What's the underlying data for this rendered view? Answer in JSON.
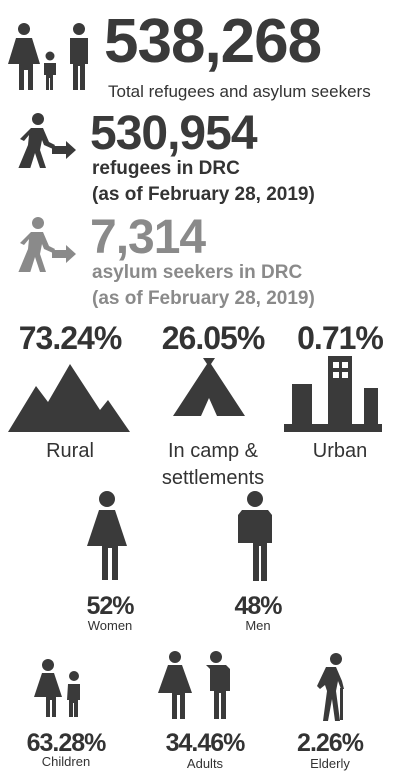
{
  "total": {
    "value": "538,268",
    "label": "Total refugees and asylum seekers"
  },
  "refugees": {
    "value": "530,954",
    "label": "refugees in DRC",
    "date": "(as of February 28, 2019)"
  },
  "asylum": {
    "value": "7,314",
    "label": "asylum seekers in DRC",
    "date": "(as of February 28, 2019)"
  },
  "settlement": [
    {
      "percent": "73.24%",
      "label": "Rural"
    },
    {
      "percent": "26.05%",
      "label": "In camp & settlements"
    },
    {
      "percent": "0.71%",
      "label": "Urban"
    }
  ],
  "gender": [
    {
      "percent": "52%",
      "label": "Women"
    },
    {
      "percent": "48%",
      "label": "Men"
    }
  ],
  "age": [
    {
      "percent": "63.28%",
      "label": "Children"
    },
    {
      "percent": "34.46%",
      "label": "Adults"
    },
    {
      "percent": "2.26%",
      "label": "Elderly"
    }
  ]
}
